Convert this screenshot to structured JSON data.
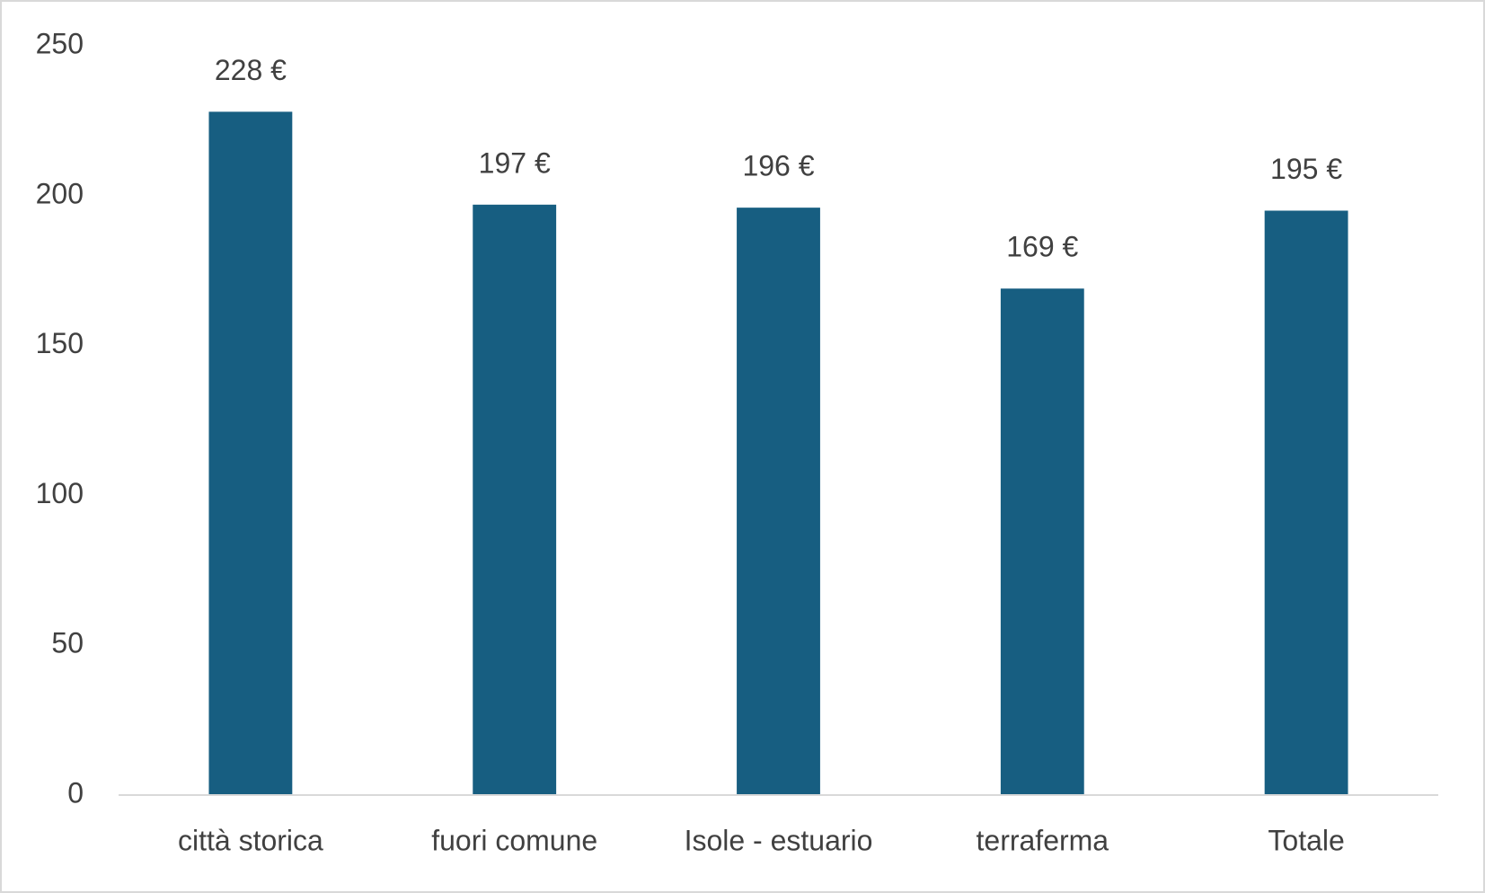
{
  "chart_data": {
    "type": "bar",
    "categories": [
      "città storica",
      "fuori comune",
      "Isole - estuario",
      "terraferma",
      "Totale"
    ],
    "values": [
      228,
      197,
      196,
      169,
      195
    ],
    "value_labels": [
      "228 €",
      "197 €",
      "196 €",
      "169 €",
      "195 €"
    ],
    "color": "#175e81",
    "ylim": [
      0,
      250
    ],
    "yticks": [
      0,
      50,
      100,
      150,
      200,
      250
    ],
    "grid": false
  }
}
